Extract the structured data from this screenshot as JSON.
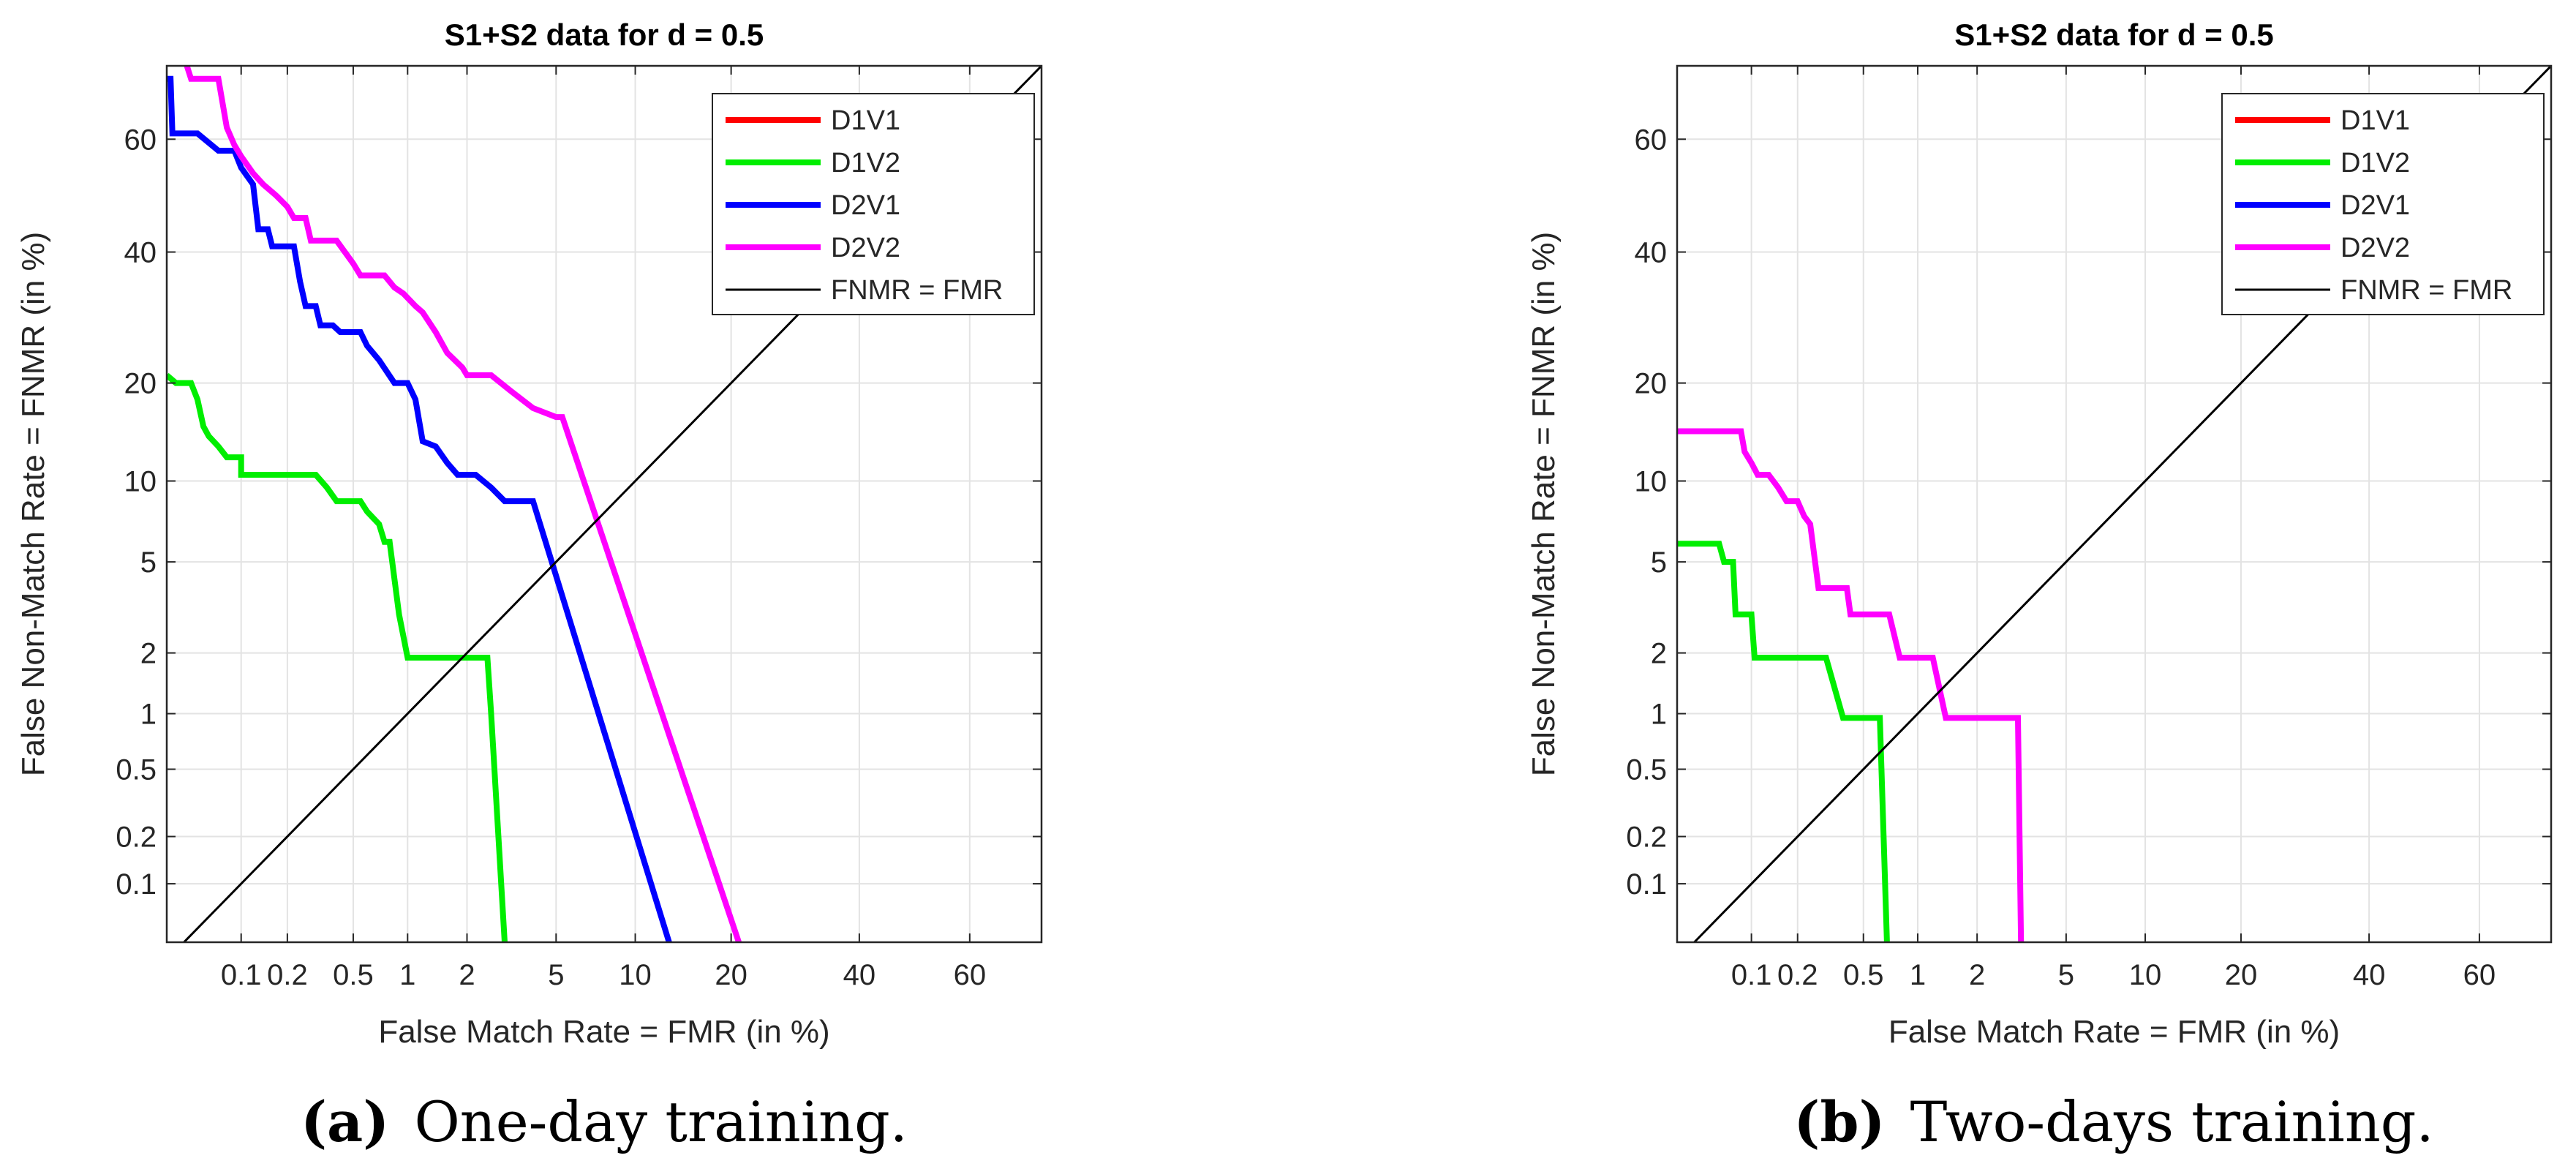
{
  "chart_data": [
    {
      "type": "line",
      "title": "S1+S2 data for d = 0.5",
      "xlabel": "False Match Rate = FMR (in %)",
      "ylabel": "False Non-Match Rate = FNMR (in %)",
      "xscale": "probit",
      "yscale": "probit",
      "xlim": [
        0.03,
        72
      ],
      "ylim": [
        0.04,
        72
      ],
      "xticks": [
        0.1,
        0.2,
        0.5,
        1,
        2,
        5,
        10,
        20,
        40,
        60
      ],
      "xtick_labels": [
        "0.1",
        "0.2",
        "0.5",
        "1",
        "2",
        "5",
        "10",
        "20",
        "40",
        "60"
      ],
      "yticks": [
        0.1,
        0.2,
        0.5,
        1,
        2,
        5,
        10,
        20,
        40,
        60
      ],
      "ytick_labels": [
        "0.1",
        "0.2",
        "0.5",
        "1",
        "2",
        "5",
        "10",
        "20",
        "40",
        "60"
      ],
      "grid": true,
      "legend_position": "top-right",
      "caption_label": "(a)",
      "caption_text": "One-day training.",
      "series": [
        {
          "name": "D1V1",
          "color": "#ff0000",
          "points": []
        },
        {
          "name": "D1V2",
          "color": "#00ee00",
          "points": [
            [
              0.03,
              21
            ],
            [
              0.035,
              20
            ],
            [
              0.045,
              20
            ],
            [
              0.05,
              18
            ],
            [
              0.055,
              15
            ],
            [
              0.06,
              14
            ],
            [
              0.07,
              13
            ],
            [
              0.08,
              12
            ],
            [
              0.1,
              12
            ],
            [
              0.1,
              10.5
            ],
            [
              0.3,
              10.5
            ],
            [
              0.35,
              9.5
            ],
            [
              0.4,
              8.5
            ],
            [
              0.55,
              8.5
            ],
            [
              0.6,
              7.8
            ],
            [
              0.7,
              7
            ],
            [
              0.75,
              6
            ],
            [
              0.8,
              6
            ],
            [
              0.9,
              3
            ],
            [
              1,
              1.9
            ],
            [
              2.5,
              1.9
            ],
            [
              2.6,
              1
            ],
            [
              3.0,
              0.04
            ]
          ]
        },
        {
          "name": "D2V1",
          "color": "#0000ff",
          "points": [
            [
              0.03,
              70
            ],
            [
              0.032,
              70
            ],
            [
              0.033,
              61
            ],
            [
              0.05,
              61
            ],
            [
              0.07,
              58
            ],
            [
              0.09,
              58
            ],
            [
              0.1,
              55
            ],
            [
              0.12,
              52
            ],
            [
              0.13,
              44
            ],
            [
              0.15,
              44
            ],
            [
              0.16,
              41
            ],
            [
              0.22,
              41
            ],
            [
              0.24,
              35
            ],
            [
              0.26,
              31
            ],
            [
              0.3,
              31
            ],
            [
              0.32,
              28
            ],
            [
              0.38,
              28
            ],
            [
              0.42,
              27
            ],
            [
              0.55,
              27
            ],
            [
              0.6,
              25
            ],
            [
              0.7,
              23
            ],
            [
              0.85,
              20
            ],
            [
              1,
              20
            ],
            [
              1.1,
              18
            ],
            [
              1.2,
              13.5
            ],
            [
              1.4,
              13
            ],
            [
              1.6,
              11.5
            ],
            [
              1.8,
              10.5
            ],
            [
              2.2,
              10.5
            ],
            [
              2.6,
              9.5
            ],
            [
              3,
              8.5
            ],
            [
              4,
              8.5
            ],
            [
              13,
              0.04
            ]
          ]
        },
        {
          "name": "D2V2",
          "color": "#ff00ff",
          "points": [
            [
              0.042,
              72
            ],
            [
              0.045,
              70
            ],
            [
              0.07,
              70
            ],
            [
              0.08,
              62
            ],
            [
              0.09,
              59
            ],
            [
              0.1,
              57
            ],
            [
              0.12,
              54
            ],
            [
              0.14,
              52
            ],
            [
              0.17,
              50
            ],
            [
              0.2,
              48
            ],
            [
              0.22,
              46
            ],
            [
              0.26,
              46
            ],
            [
              0.28,
              42
            ],
            [
              0.4,
              42
            ],
            [
              0.5,
              38
            ],
            [
              0.55,
              36
            ],
            [
              0.75,
              36
            ],
            [
              0.85,
              34
            ],
            [
              0.95,
              33
            ],
            [
              1.1,
              31
            ],
            [
              1.2,
              30
            ],
            [
              1.4,
              27
            ],
            [
              1.6,
              24
            ],
            [
              1.9,
              22
            ],
            [
              2.0,
              21
            ],
            [
              2.6,
              21
            ],
            [
              3.2,
              19
            ],
            [
              4,
              17
            ],
            [
              5,
              16
            ],
            [
              5.3,
              16
            ],
            [
              21,
              0.04
            ]
          ]
        },
        {
          "name": "FNMR = FMR",
          "color": "#000000",
          "points": [
            [
              0.04,
              0.04
            ],
            [
              72,
              72
            ]
          ]
        }
      ]
    },
    {
      "type": "line",
      "title": "S1+S2 data for d = 0.5",
      "xlabel": "False Match Rate = FMR (in %)",
      "ylabel": "False Non-Match Rate = FNMR (in %)",
      "xscale": "probit",
      "yscale": "probit",
      "xlim": [
        0.03,
        72
      ],
      "ylim": [
        0.04,
        72
      ],
      "xticks": [
        0.1,
        0.2,
        0.5,
        1,
        2,
        5,
        10,
        20,
        40,
        60
      ],
      "xtick_labels": [
        "0.1",
        "0.2",
        "0.5",
        "1",
        "2",
        "5",
        "10",
        "20",
        "40",
        "60"
      ],
      "yticks": [
        0.1,
        0.2,
        0.5,
        1,
        2,
        5,
        10,
        20,
        40,
        60
      ],
      "ytick_labels": [
        "0.1",
        "0.2",
        "0.5",
        "1",
        "2",
        "5",
        "10",
        "20",
        "40",
        "60"
      ],
      "grid": true,
      "legend_position": "top-right",
      "caption_label": "(b)",
      "caption_text": "Two-days training.",
      "series": [
        {
          "name": "D1V1",
          "color": "#ff0000",
          "points": []
        },
        {
          "name": "D1V2",
          "color": "#00ee00",
          "points": [
            [
              0.03,
              5.9
            ],
            [
              0.06,
              5.9
            ],
            [
              0.065,
              5
            ],
            [
              0.075,
              5
            ],
            [
              0.078,
              3
            ],
            [
              0.1,
              3
            ],
            [
              0.105,
              1.9
            ],
            [
              0.3,
              1.9
            ],
            [
              0.38,
              0.95
            ],
            [
              0.62,
              0.95
            ],
            [
              0.68,
              0.04
            ]
          ]
        },
        {
          "name": "D2V1",
          "color": "#0000ff",
          "points": []
        },
        {
          "name": "D2V2",
          "color": "#ff00ff",
          "points": [
            [
              0.03,
              14.5
            ],
            [
              0.085,
              14.5
            ],
            [
              0.09,
              12.5
            ],
            [
              0.1,
              11.5
            ],
            [
              0.11,
              10.5
            ],
            [
              0.13,
              10.5
            ],
            [
              0.15,
              9.5
            ],
            [
              0.17,
              8.5
            ],
            [
              0.2,
              8.5
            ],
            [
              0.22,
              7.5
            ],
            [
              0.24,
              7
            ],
            [
              0.27,
              3.9
            ],
            [
              0.4,
              3.9
            ],
            [
              0.42,
              3
            ],
            [
              0.7,
              3
            ],
            [
              0.8,
              1.9
            ],
            [
              1.2,
              1.9
            ],
            [
              1.4,
              0.95
            ],
            [
              3.1,
              0.95
            ],
            [
              3.2,
              0.04
            ]
          ]
        },
        {
          "name": "FNMR = FMR",
          "color": "#000000",
          "points": [
            [
              0.04,
              0.04
            ],
            [
              72,
              72
            ]
          ]
        }
      ]
    }
  ]
}
